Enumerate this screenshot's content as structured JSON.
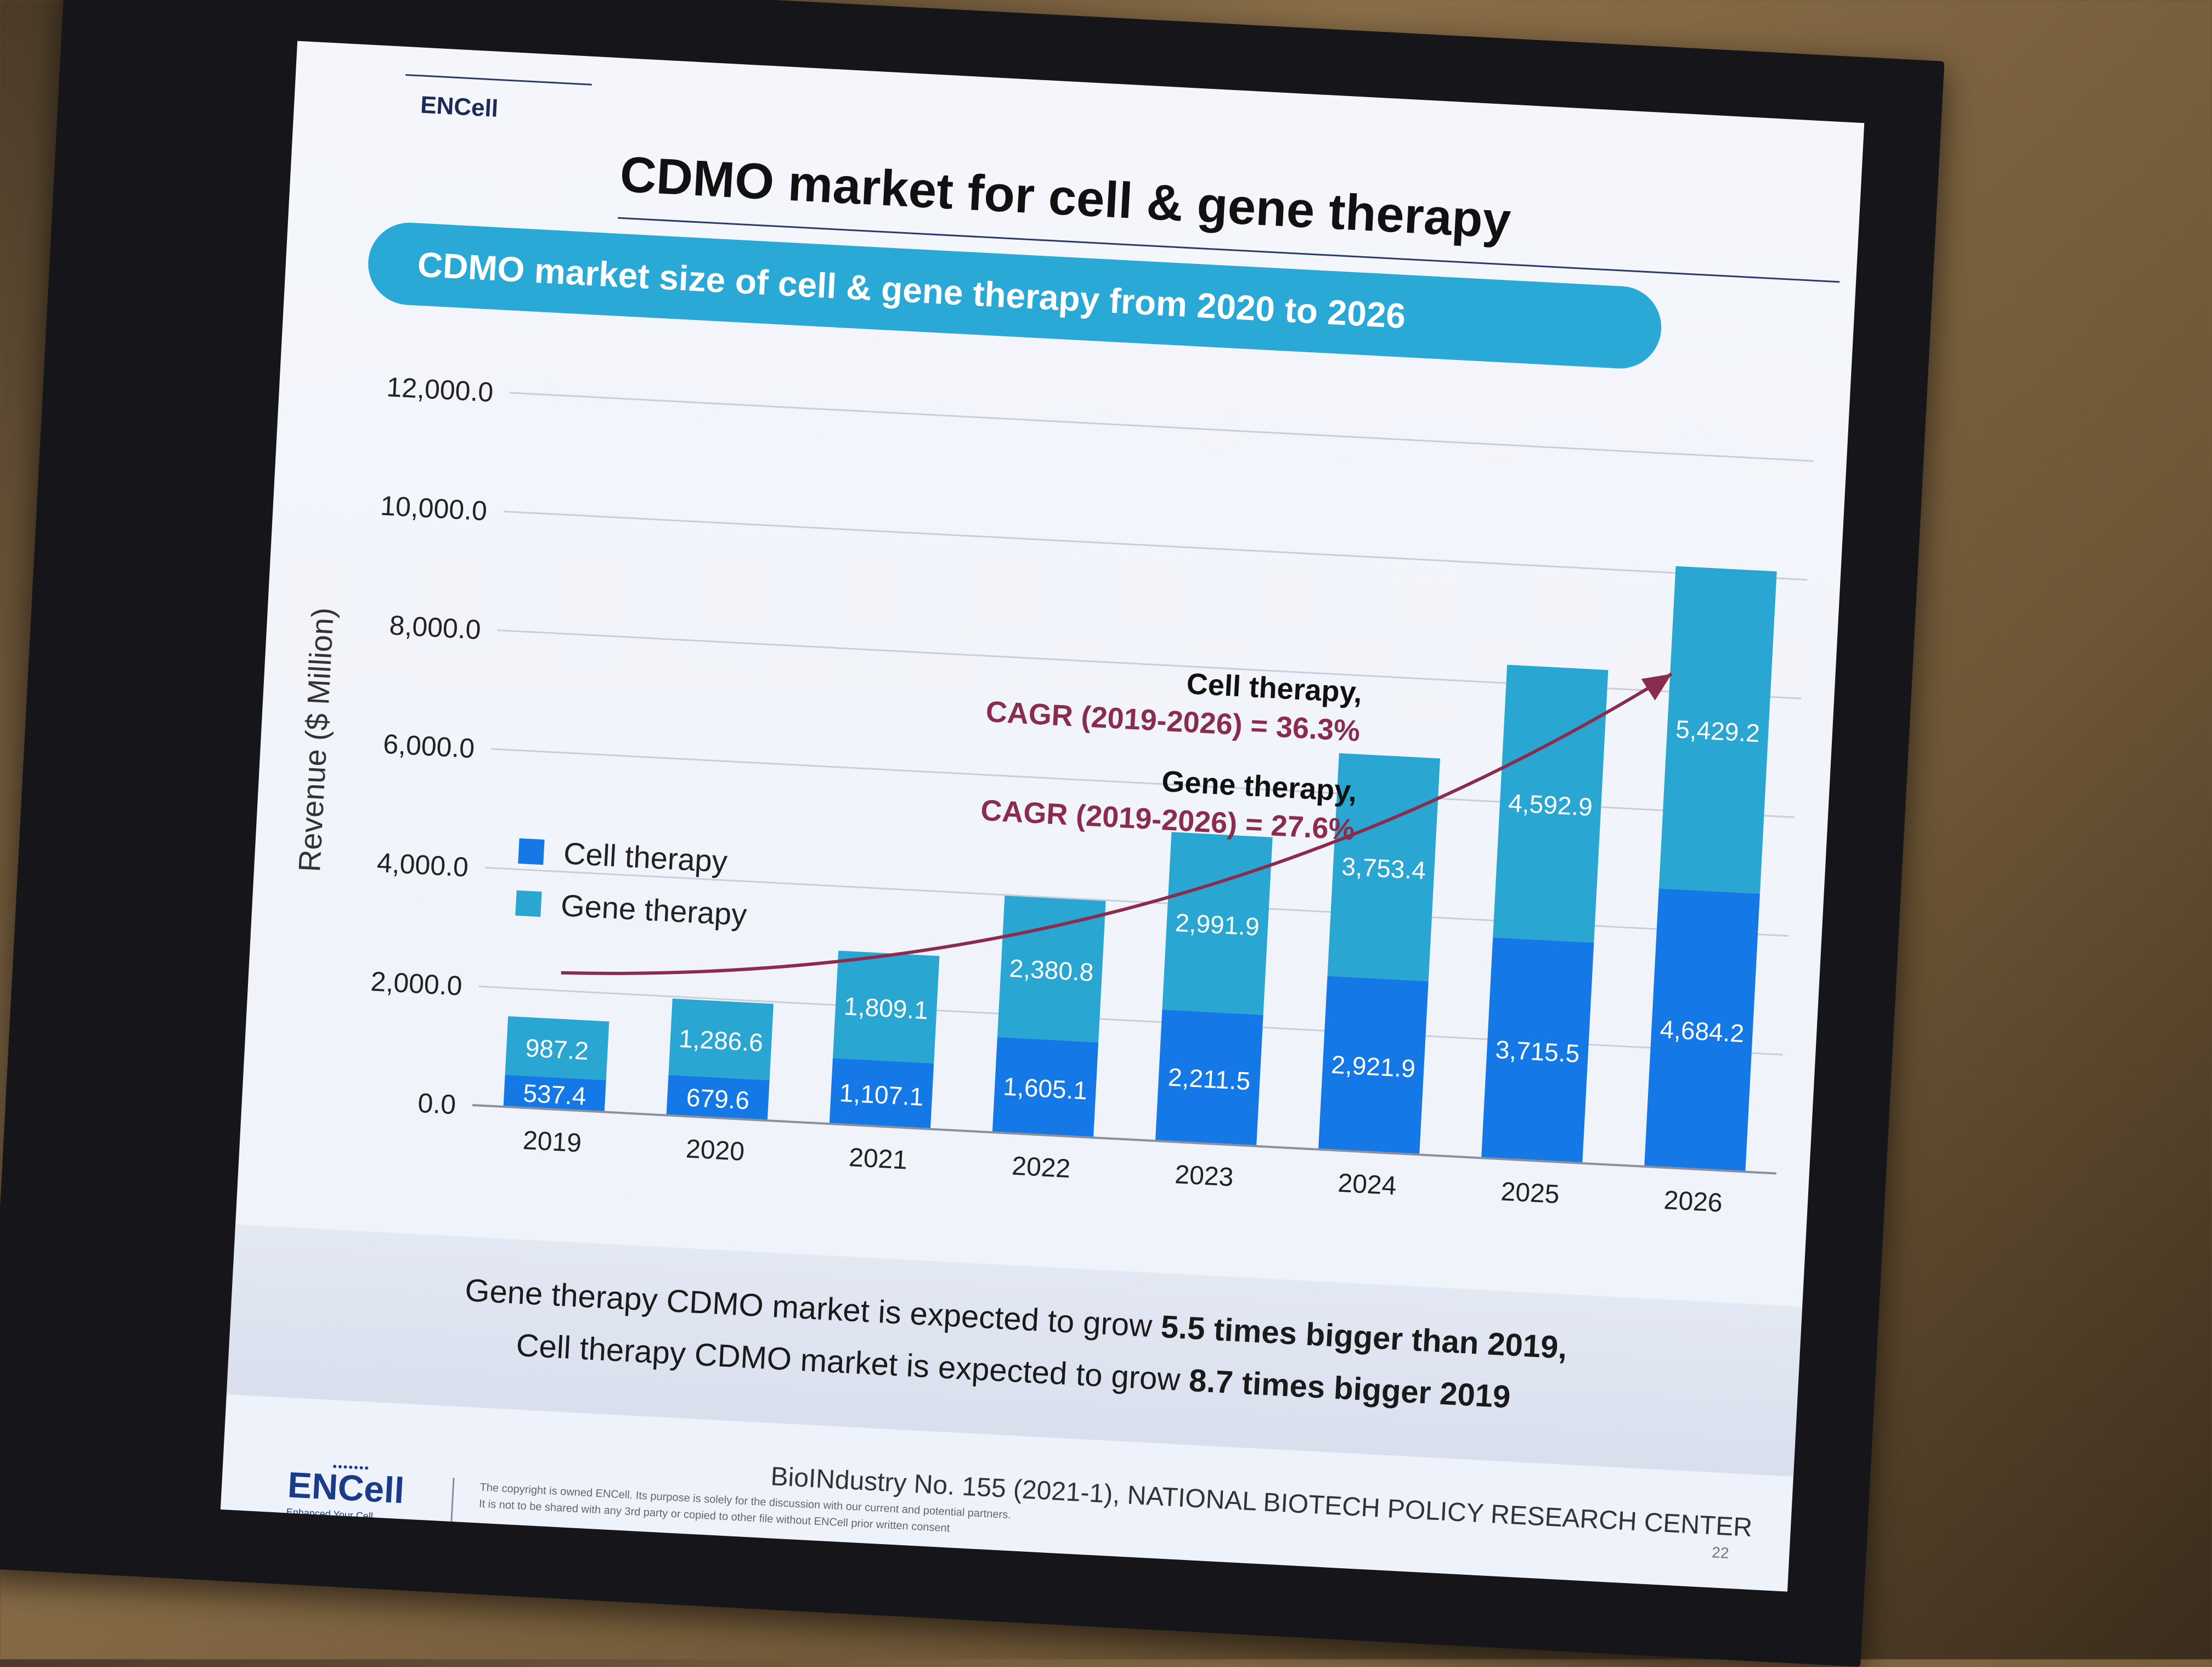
{
  "brand": "ENCell",
  "title": "CDMO market for cell & gene therapy",
  "subtitle": "CDMO market size of cell & gene therapy from 2020 to 2026",
  "cagr": [
    {
      "name": "Cell therapy,",
      "value": "CAGR (2019-2026) = 36.3%"
    },
    {
      "name": "Gene therapy,",
      "value": "CAGR (2019-2026) = 27.6%"
    }
  ],
  "legend": [
    {
      "label": "Cell therapy",
      "color": "#1478e6"
    },
    {
      "label": "Gene therapy",
      "color": "#2aa6d2"
    }
  ],
  "summary": {
    "line1_pre": "Gene therapy CDMO market is expected to grow ",
    "line1_bold": "5.5 times bigger than 2019,",
    "line2_pre": "Cell therapy CDMO market is expected to grow ",
    "line2_bold": "8.7 times bigger 2019"
  },
  "source": "BioINdustry No. 155 (2021-1), NATIONAL BIOTECH POLICY RESEARCH CENTER",
  "footer": {
    "logo": "ENCell",
    "tagline": "Enhanced Your Cell",
    "note_line1": "The copyright is owned ENCell. Its purpose is solely for the discussion with our current and potential partners.",
    "note_line2": "It is not to be shared with any 3rd party or copied to other file without ENCell prior written consent",
    "page": "22"
  },
  "chart_data": {
    "type": "bar",
    "stacked": true,
    "title": "CDMO market size of cell & gene therapy from 2020 to 2026",
    "xlabel": "",
    "ylabel": "Revenue ($ Million)",
    "ylim": [
      0,
      12000
    ],
    "yticks": [
      0,
      2000,
      4000,
      6000,
      8000,
      10000,
      12000
    ],
    "ytick_labels": [
      "0.0",
      "2,000.0",
      "4,000.0",
      "6,000.0",
      "8,000.0",
      "10,000.0",
      "12,000.0"
    ],
    "categories": [
      "2019",
      "2020",
      "2021",
      "2022",
      "2023",
      "2024",
      "2025",
      "2026"
    ],
    "series": [
      {
        "name": "Cell therapy",
        "color": "#1478e6",
        "values": [
          537.4,
          679.6,
          1107.1,
          1605.1,
          2211.5,
          2921.9,
          3715.5,
          4684.2
        ],
        "labels": [
          "537.4",
          "679.6",
          "1,107.1",
          "1,605.1",
          "2,211.5",
          "2,921.9",
          "3,715.5",
          "4,684.2"
        ]
      },
      {
        "name": "Gene therapy",
        "color": "#2aa6d2",
        "values": [
          987.2,
          1286.6,
          1809.1,
          2380.8,
          2991.9,
          3753.4,
          4592.9,
          5429.2
        ],
        "labels": [
          "987.2",
          "1,286.6",
          "1,809.1",
          "2,380.8",
          "2,991.9",
          "3,753.4",
          "4,592.9",
          "5,429.2"
        ]
      }
    ],
    "grid": true,
    "legend_position": "left"
  }
}
